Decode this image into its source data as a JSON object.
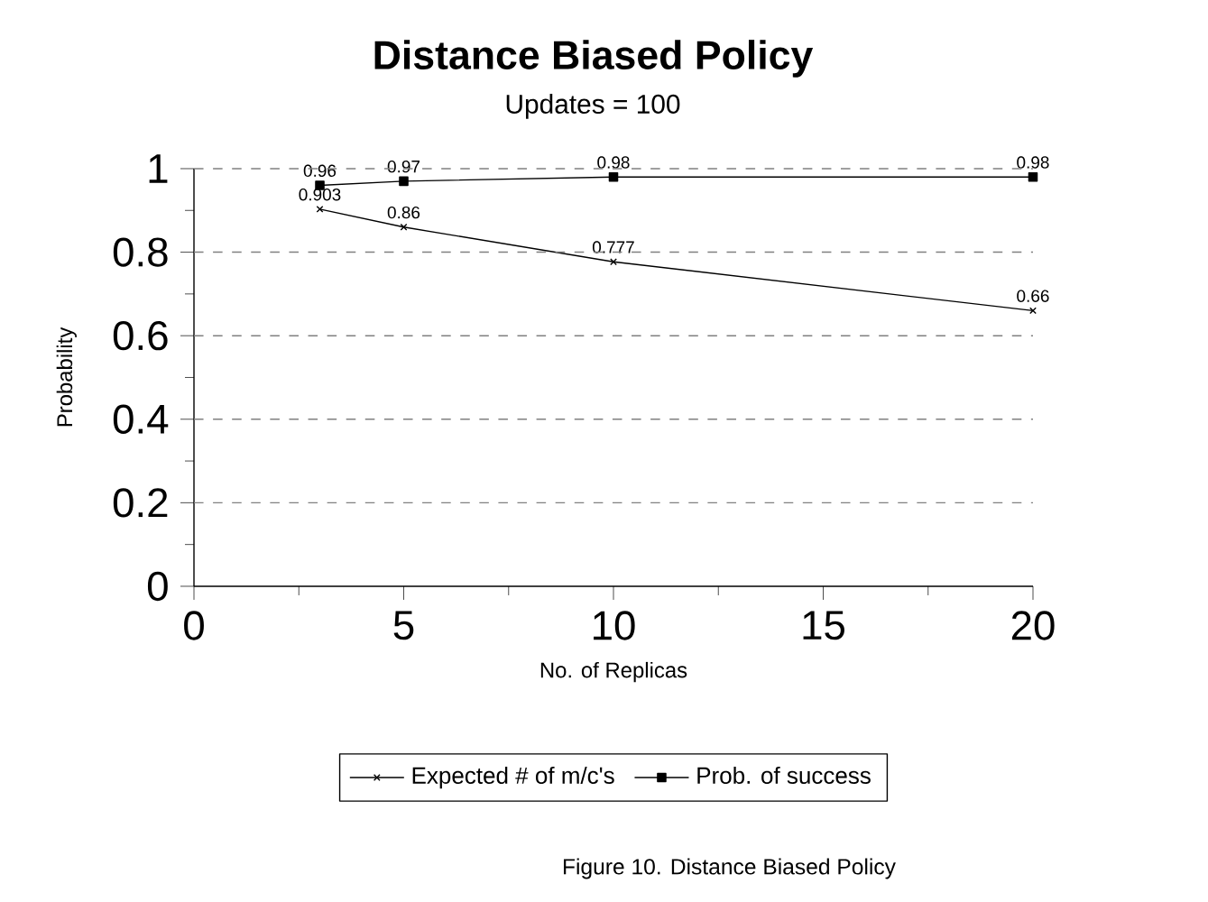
{
  "chart_data": {
    "type": "line",
    "title": "Distance Biased Policy",
    "subtitle": "Updates = 100",
    "xlabel": "No. of Replicas",
    "ylabel": "Probability",
    "x": [
      3,
      5,
      10,
      20
    ],
    "series": [
      {
        "name": "Expected # of m/c's",
        "color": "#000000",
        "marker": "cross",
        "values": [
          0.903,
          0.86,
          0.777,
          0.66
        ]
      },
      {
        "name": "Prob. of success",
        "color": "#000000",
        "marker": "square",
        "values": [
          0.96,
          0.97,
          0.98,
          0.98
        ]
      }
    ],
    "xlim": [
      0,
      20
    ],
    "xticks": [
      0,
      5,
      10,
      15,
      20
    ],
    "ylim": [
      0,
      1
    ],
    "yticks": [
      0,
      0.2,
      0.4,
      0.6,
      0.8,
      1
    ],
    "grid": "y",
    "legend": "bottom",
    "data_labels": true,
    "line_style": "solid",
    "annotations": [
      "Figure 10.  Distance Biased Policy"
    ]
  }
}
